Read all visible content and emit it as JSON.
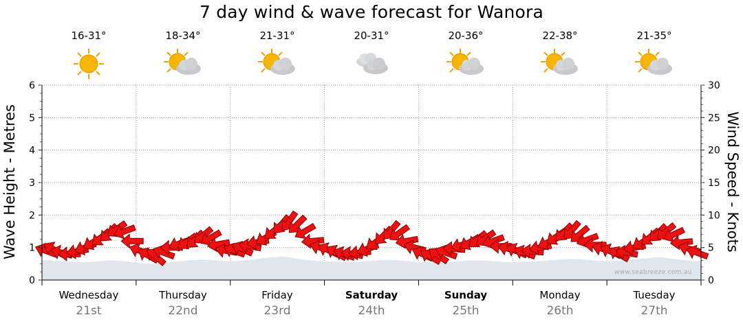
{
  "title": "7 day wind & wave forecast for Wanora",
  "credit": "www.seabreeze.com.au",
  "days": [
    {
      "name": "Wednesday",
      "date": "21st",
      "bold": false,
      "temp": "16-31°",
      "weather": "sunny-icon"
    },
    {
      "name": "Thursday",
      "date": "22nd",
      "bold": false,
      "temp": "18-34°",
      "weather": "partly-cloudy-icon"
    },
    {
      "name": "Friday",
      "date": "23rd",
      "bold": false,
      "temp": "21-31°",
      "weather": "partly-cloudy-icon"
    },
    {
      "name": "Saturday",
      "date": "24th",
      "bold": true,
      "temp": "20-31°",
      "weather": "cloudy-icon"
    },
    {
      "name": "Sunday",
      "date": "25th",
      "bold": true,
      "temp": "20-36°",
      "weather": "partly-cloudy-icon"
    },
    {
      "name": "Monday",
      "date": "26th",
      "bold": false,
      "temp": "22-38°",
      "weather": "partly-cloudy-icon"
    },
    {
      "name": "Tuesday",
      "date": "27th",
      "bold": false,
      "temp": "21-35°",
      "weather": "partly-cloudy-icon"
    }
  ],
  "chart_data": {
    "type": "line",
    "title": "7 day wind & wave forecast for Wanora",
    "y_left_label": "Wave Height - Metres",
    "y_right_label": "Wind Speed - Knots",
    "y_left_range": [
      0,
      6
    ],
    "y_left_ticks": [
      "0",
      "1",
      "2",
      "3",
      "4",
      "5",
      "6"
    ],
    "y_right_range": [
      0,
      30
    ],
    "y_right_ticks": [
      "0",
      "5",
      "10",
      "15",
      "20",
      "25",
      "30"
    ],
    "grid": true,
    "x_days": 7,
    "series": [
      {
        "name": "Wind",
        "unit": "knots",
        "color": "#ee1111",
        "values": [
          4.5,
          4.7,
          4.2,
          4.0,
          4.4,
          5.0,
          5.8,
          6.5,
          7.2,
          7.8,
          7.5,
          6.0,
          4.5,
          3.8,
          3.6,
          4.2,
          5.0,
          5.6,
          5.9,
          6.2,
          6.8,
          6.5,
          5.5,
          4.5,
          4.5,
          4.8,
          5.2,
          5.8,
          6.5,
          7.5,
          8.5,
          9.0,
          8.5,
          7.5,
          6.0,
          5.0,
          4.6,
          4.2,
          4.0,
          4.0,
          4.2,
          4.8,
          5.8,
          6.8,
          7.6,
          7.2,
          6.0,
          5.0,
          4.0,
          3.6,
          3.8,
          4.2,
          4.8,
          5.4,
          5.8,
          6.2,
          6.4,
          6.0,
          5.2,
          4.8,
          4.5,
          4.2,
          4.4,
          5.0,
          5.8,
          6.6,
          7.3,
          7.6,
          7.0,
          6.2,
          5.4,
          4.8,
          4.4,
          4.0,
          4.2,
          5.0,
          5.8,
          6.6,
          7.2,
          7.4,
          7.0,
          5.8,
          4.8,
          4.2
        ]
      },
      {
        "name": "Wave direction",
        "unit": "degrees",
        "color": "#ee1111",
        "values": [
          200,
          210,
          195,
          180,
          170,
          160,
          150,
          140,
          135,
          145,
          160,
          180,
          200,
          210,
          220,
          200,
          180,
          160,
          145,
          135,
          140,
          150,
          170,
          190,
          200,
          205,
          190,
          170,
          150,
          140,
          130,
          125,
          135,
          150,
          175,
          195,
          205,
          210,
          200,
          190,
          175,
          160,
          145,
          135,
          130,
          145,
          170,
          195,
          205,
          210,
          215,
          200,
          185,
          165,
          150,
          140,
          145,
          160,
          180,
          195,
          205,
          200,
          185,
          170,
          155,
          145,
          135,
          130,
          140,
          160,
          180,
          195,
          205,
          210,
          190,
          170,
          150,
          140,
          135,
          140,
          155,
          175,
          195,
          200
        ]
      }
    ]
  },
  "waves": {
    "name": "Wave height",
    "unit": "metres",
    "fill": "#dfe6ee",
    "values": [
      0.62,
      0.6,
      0.58,
      0.56,
      0.55,
      0.55,
      0.56,
      0.58,
      0.6,
      0.6,
      0.58,
      0.55,
      0.52,
      0.5,
      0.5,
      0.52,
      0.55,
      0.58,
      0.6,
      0.62,
      0.63,
      0.62,
      0.6,
      0.58,
      0.58,
      0.6,
      0.62,
      0.65,
      0.68,
      0.7,
      0.72,
      0.7,
      0.66,
      0.62,
      0.6,
      0.58,
      0.58,
      0.56,
      0.55,
      0.55,
      0.56,
      0.58,
      0.6,
      0.62,
      0.62,
      0.6,
      0.58,
      0.56,
      0.55,
      0.54,
      0.54,
      0.55,
      0.56,
      0.58,
      0.6,
      0.6,
      0.6,
      0.58,
      0.56,
      0.55,
      0.55,
      0.56,
      0.57,
      0.58,
      0.6,
      0.62,
      0.64,
      0.65,
      0.64,
      0.62,
      0.6,
      0.58,
      0.58,
      0.6,
      0.62,
      0.64,
      0.66,
      0.68,
      0.7,
      0.68,
      0.65,
      0.62,
      0.6,
      0.58
    ]
  }
}
